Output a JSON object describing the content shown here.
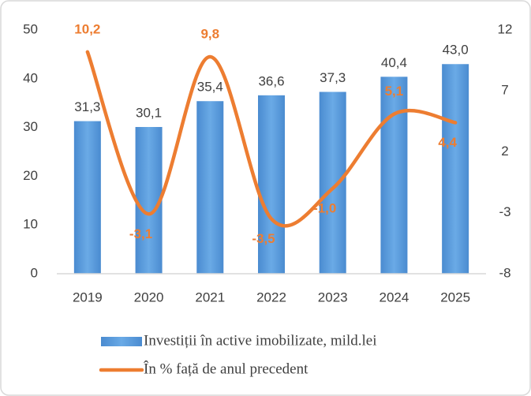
{
  "chart_data": {
    "type": "bar",
    "categories": [
      "2019",
      "2020",
      "2021",
      "2022",
      "2023",
      "2024",
      "2025"
    ],
    "series": [
      {
        "name": "Investiții în active imobilizate, mild.lei",
        "type": "bar",
        "color": "#5b9bd5",
        "values": [
          31.3,
          30.1,
          35.4,
          36.6,
          37.3,
          40.4,
          43.0
        ],
        "value_labels": [
          "31,3",
          "30,1",
          "35,4",
          "36,6",
          "37,3",
          "40,4",
          "43,0"
        ]
      },
      {
        "name": "În % față de anul precedent",
        "type": "line",
        "axis": "y2",
        "color": "#ed7d31",
        "values": [
          10.2,
          -3.1,
          9.8,
          -3.5,
          -1.0,
          5.1,
          4.4
        ],
        "value_labels": [
          "10,2",
          "-3,1",
          "9,8",
          "-3,5",
          "-1,0",
          "5,1",
          "4,4"
        ]
      }
    ],
    "ylim": [
      0,
      50
    ],
    "yticks": [
      0,
      10,
      20,
      30,
      40,
      50
    ],
    "y2lim": [
      -8,
      12
    ],
    "y2ticks": [
      -8,
      -3,
      2,
      7,
      12
    ],
    "grid": false,
    "legend": "bottom"
  }
}
